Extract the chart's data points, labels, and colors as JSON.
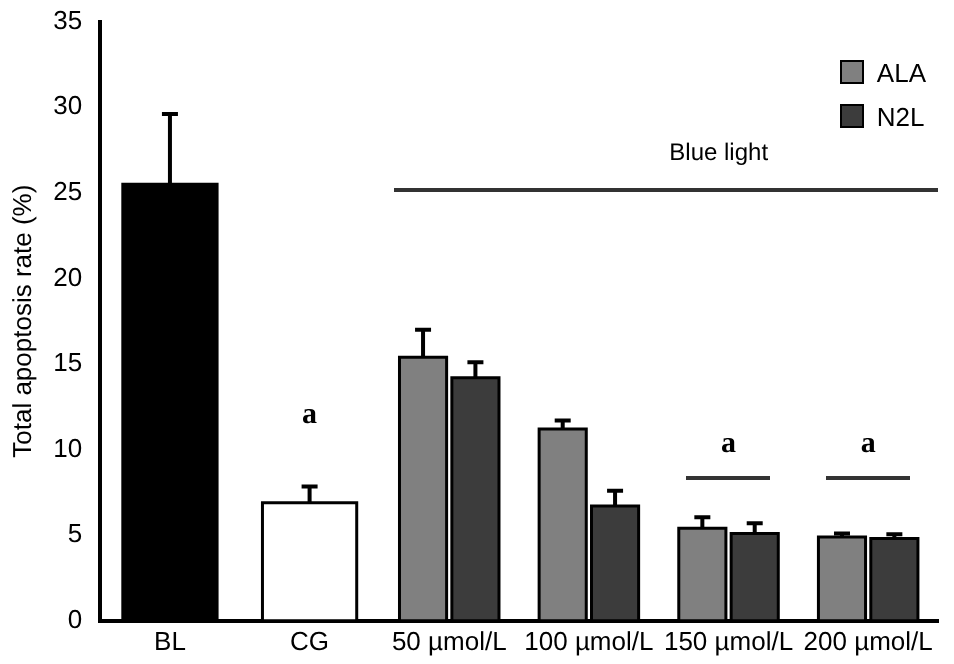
{
  "chart_data": {
    "type": "bar",
    "ylabel": "Total apoptosis rate (%)",
    "categories": [
      "BL",
      "CG",
      "50 µmol/L",
      "100 µmol/L",
      "150 µmol/L",
      "200 µmol/L"
    ],
    "series": [
      {
        "colors": [
          "#000000",
          "#ffffff",
          null,
          null,
          null,
          null
        ],
        "values": [
          25.5,
          6.9,
          null,
          null,
          null,
          null
        ],
        "errors": [
          4.1,
          0.95,
          null,
          null,
          null,
          null
        ]
      },
      {
        "name": "ALA",
        "color": "#808080",
        "values": [
          null,
          null,
          15.4,
          11.2,
          5.4,
          4.9
        ],
        "errors": [
          null,
          null,
          1.6,
          0.5,
          0.65,
          0.2
        ]
      },
      {
        "name": "N2L",
        "color": "#3c3c3c",
        "values": [
          null,
          null,
          14.2,
          6.7,
          5.1,
          4.8
        ],
        "errors": [
          null,
          null,
          0.9,
          0.9,
          0.6,
          0.25
        ]
      }
    ],
    "ylim": [
      0,
      35
    ],
    "yticks": [
      0,
      5,
      10,
      15,
      20,
      25,
      30,
      35
    ],
    "grid": false,
    "legend": "top right",
    "annotations": [
      "Blue light",
      "a",
      "a",
      "a"
    ]
  }
}
